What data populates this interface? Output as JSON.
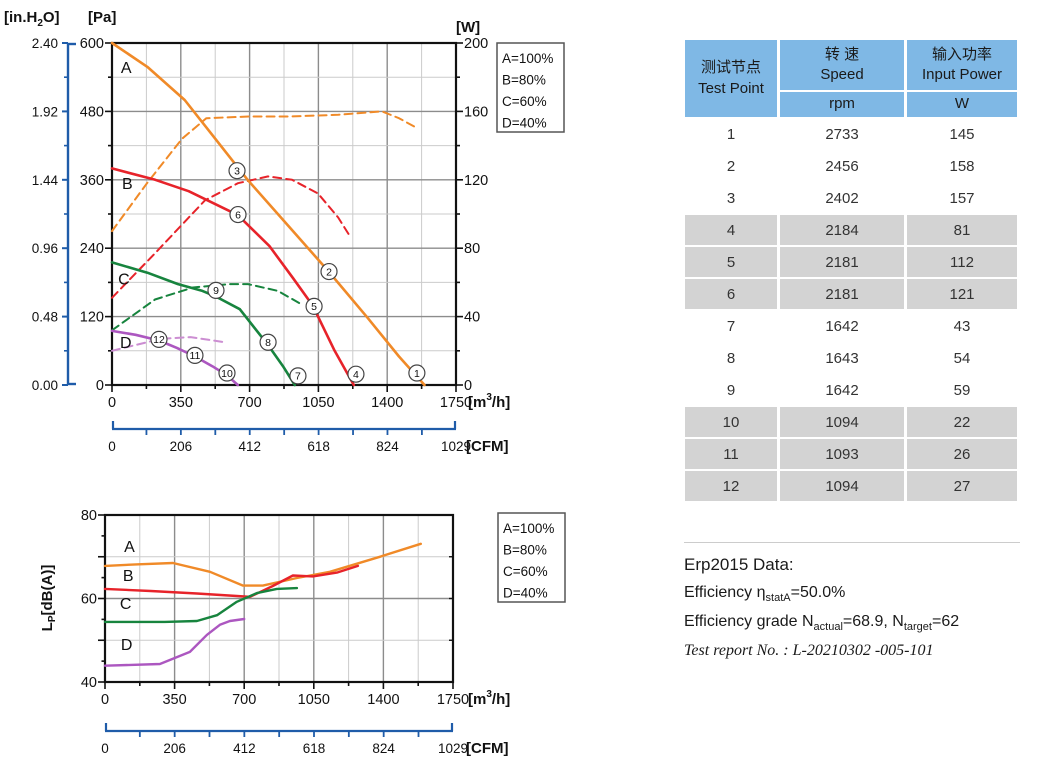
{
  "colors": {
    "blue": "#1F5CA9",
    "grid_minor": "#CBCBCB",
    "grid_major": "#8C8C8C",
    "plot_border": "#111111",
    "table_header_bg": "#7FB8E5",
    "table_shaded_row_bg": "#D3D3D3",
    "orange": "#F08A28",
    "red": "#E7232A",
    "green": "#17843E",
    "purple": "#AC57C0",
    "purple_light": "#CC8ED2"
  },
  "legend": {
    "items": [
      {
        "label": "A=100%",
        "color": "#F08A28"
      },
      {
        "label": "B=80%",
        "color": "#E7232A"
      },
      {
        "label": "C=60%",
        "color": "#17843E"
      },
      {
        "label": "D=40%",
        "color": "#AC57C0"
      }
    ]
  },
  "chart_data": [
    {
      "type": "line",
      "id": "performance",
      "x_axis": {
        "label_parts": [
          "[m",
          "3",
          "/h]"
        ],
        "ticks": [
          0,
          350,
          700,
          1050,
          1400,
          1750
        ],
        "range": [
          0,
          1750
        ]
      },
      "x_axis2": {
        "label": "[CFM]",
        "ticks": [
          0,
          206,
          412,
          618,
          824,
          1029
        ],
        "range": [
          0,
          1029
        ]
      },
      "y_axis": {
        "label": "[Pa]",
        "ticks": [
          0,
          120,
          240,
          360,
          480,
          600
        ],
        "range": [
          0,
          600
        ]
      },
      "y_axis2": {
        "label_parts": [
          "[in.H",
          "2",
          "O]"
        ],
        "ticks": [
          "0.00",
          "0.48",
          "0.96",
          "1.44",
          "1.92",
          "2.40"
        ],
        "range": [
          0,
          2.4
        ]
      },
      "y_axis3": {
        "label": "[W]",
        "ticks": [
          0,
          40,
          80,
          120,
          160,
          200
        ],
        "range": [
          0,
          200
        ]
      },
      "legend_position": "top-right",
      "grid": "on",
      "series": [
        {
          "name": "A",
          "label": "A=100%",
          "unit": "Pa",
          "color": "#F08A28",
          "points": [
            [
              0,
              600
            ],
            [
              180,
              558
            ],
            [
              370,
              500
            ],
            [
              530,
              430
            ],
            [
              690,
              360
            ],
            [
              900,
              278
            ],
            [
              1100,
              200
            ],
            [
              1300,
              118
            ],
            [
              1460,
              50
            ],
            [
              1590,
              0
            ]
          ]
        },
        {
          "name": "B",
          "label": "B=80%",
          "unit": "Pa",
          "color": "#E7232A",
          "points": [
            [
              0,
              380
            ],
            [
              220,
              360
            ],
            [
              390,
              340
            ],
            [
              640,
              298
            ],
            [
              800,
              244
            ],
            [
              920,
              188
            ],
            [
              1020,
              140
            ],
            [
              1130,
              62
            ],
            [
              1230,
              0
            ]
          ]
        },
        {
          "name": "C",
          "label": "C=60%",
          "unit": "Pa",
          "color": "#17843E",
          "points": [
            [
              0,
              215
            ],
            [
              180,
              197
            ],
            [
              336,
              177
            ],
            [
              460,
              165
            ],
            [
              529,
              155
            ],
            [
              650,
              133
            ],
            [
              794,
              70
            ],
            [
              870,
              33
            ],
            [
              930,
              0
            ]
          ]
        },
        {
          "name": "D",
          "label": "D=40%",
          "unit": "Pa",
          "color": "#AC57C0",
          "points": [
            [
              0,
              95
            ],
            [
              120,
              88
            ],
            [
              239,
              78
            ],
            [
              330,
              65
            ],
            [
              422,
              50
            ],
            [
              510,
              33
            ],
            [
              585,
              17
            ],
            [
              640,
              0
            ]
          ]
        }
      ],
      "power_series": [
        {
          "name": "A-power",
          "unit": "W",
          "color": "#F08A28",
          "points": [
            [
              0,
              90
            ],
            [
              178,
              118
            ],
            [
              356,
              144
            ],
            [
              480,
              156
            ],
            [
              700,
              157
            ],
            [
              900,
              157
            ],
            [
              1150,
              158
            ],
            [
              1374,
              160
            ],
            [
              1460,
              156
            ],
            [
              1540,
              151
            ]
          ]
        },
        {
          "name": "B-power",
          "unit": "W",
          "color": "#E7232A",
          "points": [
            [
              0,
              51
            ],
            [
              219,
              77
            ],
            [
              473,
              108
            ],
            [
              641,
              118
            ],
            [
              794,
              122
            ],
            [
              916,
              120
            ],
            [
              1048,
              112
            ],
            [
              1150,
              98
            ],
            [
              1216,
              86
            ]
          ]
        },
        {
          "name": "C-power",
          "unit": "W",
          "color": "#17843E",
          "points": [
            [
              0,
              32
            ],
            [
              219,
              50
            ],
            [
              412,
              57
            ],
            [
              600,
              59
            ],
            [
              692,
              59
            ],
            [
              844,
              55
            ],
            [
              966,
              47
            ]
          ]
        },
        {
          "name": "D-power",
          "unit": "W",
          "color": "#CC8ED2",
          "points": [
            [
              0,
              20
            ],
            [
              250,
              27
            ],
            [
              400,
              28
            ],
            [
              575,
              25
            ]
          ]
        }
      ],
      "markers": [
        {
          "n": "1",
          "x": 1551,
          "y": 21
        },
        {
          "n": "2",
          "x": 1104,
          "y": 199
        },
        {
          "n": "3",
          "x": 636,
          "y": 376
        },
        {
          "n": "4",
          "x": 1241,
          "y": 19
        },
        {
          "n": "5",
          "x": 1028,
          "y": 138
        },
        {
          "n": "6",
          "x": 641,
          "y": 299
        },
        {
          "n": "7",
          "x": 946,
          "y": 16
        },
        {
          "n": "8",
          "x": 794,
          "y": 75
        },
        {
          "n": "9",
          "x": 529,
          "y": 166
        },
        {
          "n": "10",
          "x": 585,
          "y": 21
        },
        {
          "n": "11",
          "x": 422,
          "y": 52
        },
        {
          "n": "12",
          "x": 239,
          "y": 80
        }
      ],
      "curve_labels": [
        {
          "t": "A",
          "x": 45,
          "y": 547,
          "color": "#F08A28"
        },
        {
          "t": "B",
          "x": 51,
          "y": 344,
          "color": "#E7232A"
        },
        {
          "t": "C",
          "x": 31,
          "y": 176,
          "color": "#17843E"
        },
        {
          "t": "D",
          "x": 41,
          "y": 65,
          "color": "#CC8ED2"
        }
      ]
    },
    {
      "type": "line",
      "id": "noise",
      "x_axis": {
        "label_parts": [
          "[m",
          "3",
          "/h]"
        ],
        "ticks": [
          0,
          350,
          700,
          1050,
          1400,
          1750
        ],
        "range": [
          0,
          1750
        ]
      },
      "x_axis2": {
        "label": "[CFM]",
        "ticks": [
          0,
          206,
          412,
          618,
          824,
          1029
        ],
        "range": [
          0,
          1029
        ]
      },
      "y_axis": {
        "label_parts": [
          "L",
          "P",
          "[dB(A)]"
        ],
        "ticks": [
          40,
          60,
          80
        ],
        "range": [
          40,
          80
        ]
      },
      "legend_position": "top-right",
      "grid": "on",
      "series": [
        {
          "name": "A",
          "label": "A=100%",
          "unit": "dB(A)",
          "color": "#F08A28",
          "points": [
            [
              0,
              67.8
            ],
            [
              170,
              68.2
            ],
            [
              342,
              68.5
            ],
            [
              528,
              66.4
            ],
            [
              694,
              63.1
            ],
            [
              794,
              63.1
            ],
            [
              965,
              64.9
            ],
            [
              1131,
              66.4
            ],
            [
              1382,
              70.0
            ],
            [
              1588,
              73.1
            ]
          ]
        },
        {
          "name": "B",
          "label": "B=80%",
          "unit": "dB(A)",
          "color": "#E7232A",
          "points": [
            [
              0,
              62.3
            ],
            [
              230,
              61.8
            ],
            [
              462,
              61.2
            ],
            [
              663,
              60.6
            ],
            [
              729,
              60.4
            ],
            [
              844,
              63.0
            ],
            [
              945,
              65.5
            ],
            [
              1045,
              65.3
            ],
            [
              1166,
              66.2
            ],
            [
              1272,
              67.8
            ]
          ]
        },
        {
          "name": "C",
          "label": "C=60%",
          "unit": "dB(A)",
          "color": "#17843E",
          "points": [
            [
              0,
              54.4
            ],
            [
              300,
              54.4
            ],
            [
              462,
              54.6
            ],
            [
              563,
              56.0
            ],
            [
              663,
              59.2
            ],
            [
              764,
              61.3
            ],
            [
              864,
              62.3
            ],
            [
              965,
              62.5
            ]
          ]
        },
        {
          "name": "D",
          "label": "D=40%",
          "unit": "dB(A)",
          "color": "#AC57C0",
          "points": [
            [
              0,
              43.9
            ],
            [
              276,
              44.3
            ],
            [
              427,
              47.2
            ],
            [
              513,
              51.3
            ],
            [
              578,
              53.7
            ],
            [
              628,
              54.6
            ],
            [
              700,
              55.1
            ]
          ]
        }
      ],
      "curve_labels": [
        {
          "t": "A",
          "x": 96,
          "y": 71.1,
          "color": "#F08A28"
        },
        {
          "t": "B",
          "x": 90,
          "y": 64.2,
          "color": "#E7232A"
        },
        {
          "t": "C",
          "x": 75,
          "y": 57.5,
          "color": "#17843E"
        },
        {
          "t": "D",
          "x": 80,
          "y": 47.7,
          "color": "#CC8ED2"
        }
      ]
    }
  ],
  "table": {
    "headers": {
      "col1_zh": "测试节点",
      "col1_en": "Test Point",
      "col2_zh": "转 速",
      "col2_en": "Speed",
      "col2_unit": "rpm",
      "col3_zh": "输入功率",
      "col3_en": "Input Power",
      "col3_unit": "W"
    },
    "rows": [
      {
        "point": "1",
        "speed": "2733",
        "power": "145",
        "shaded": false
      },
      {
        "point": "2",
        "speed": "2456",
        "power": "158",
        "shaded": false
      },
      {
        "point": "3",
        "speed": "2402",
        "power": "157",
        "shaded": false
      },
      {
        "point": "4",
        "speed": "2184",
        "power": "81",
        "shaded": true
      },
      {
        "point": "5",
        "speed": "2181",
        "power": "112",
        "shaded": true
      },
      {
        "point": "6",
        "speed": "2181",
        "power": "121",
        "shaded": true
      },
      {
        "point": "7",
        "speed": "1642",
        "power": "43",
        "shaded": false
      },
      {
        "point": "8",
        "speed": "1643",
        "power": "54",
        "shaded": false
      },
      {
        "point": "9",
        "speed": "1642",
        "power": "59",
        "shaded": false
      },
      {
        "point": "10",
        "speed": "1094",
        "power": "22",
        "shaded": true
      },
      {
        "point": "11",
        "speed": "1093",
        "power": "26",
        "shaded": true
      },
      {
        "point": "12",
        "speed": "1094",
        "power": "27",
        "shaded": true
      }
    ]
  },
  "erp": {
    "title": "Erp2015  Data:",
    "efficiency": {
      "pre": "Efficiency η",
      "sub": "statA",
      "post": "=50.0%"
    },
    "grade": {
      "pre": "Efficiency grade N",
      "sub1": "actual",
      "mid": "=68.9, N",
      "sub2": "target",
      "post": "=62"
    },
    "report": "Test report No. : L-20210302 -005-101"
  }
}
